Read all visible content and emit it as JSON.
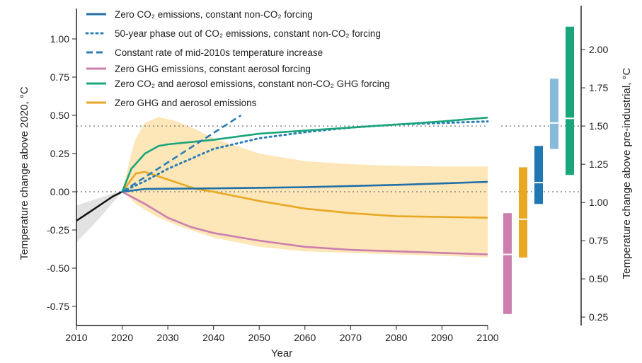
{
  "chart_data": {
    "type": "line",
    "xlabel": "Year",
    "ylabel": "Temperature change above 2020, °C",
    "ylabel_right": "Temperature change above pre-industrial, °C",
    "xlim": [
      2010,
      2100
    ],
    "ylim": [
      -0.85,
      1.15
    ],
    "ylim_right": [
      0.22,
      2.22
    ],
    "right_offset": 1.07,
    "xticks": [
      "2010",
      "2020",
      "2030",
      "2040",
      "2050",
      "2060",
      "2070",
      "2080",
      "2090",
      "2100"
    ],
    "yticks": [
      "-0.75",
      "-0.50",
      "-0.25",
      "0.00",
      "0.25",
      "0.50",
      "0.75",
      "1.00"
    ],
    "yticks_right": [
      "0.25",
      "0.50",
      "0.75",
      "1.00",
      "1.25",
      "1.50",
      "1.75",
      "2.00"
    ],
    "reference_lines": [
      0.0,
      0.43
    ],
    "historical": {
      "x": [
        2010,
        2013,
        2016,
        2018,
        2020
      ],
      "y": [
        -0.19,
        -0.13,
        -0.07,
        -0.03,
        0
      ],
      "band_upper": [
        -0.09,
        -0.06,
        -0.03,
        -0.01,
        0
      ],
      "band_lower": [
        -0.33,
        -0.24,
        -0.14,
        -0.07,
        0
      ]
    },
    "uncertainty_band": {
      "x": [
        2020,
        2022,
        2023,
        2025,
        2028,
        2032,
        2036,
        2040,
        2050,
        2060,
        2070,
        2080,
        2090,
        2100
      ],
      "upper": [
        0,
        0.25,
        0.35,
        0.45,
        0.49,
        0.46,
        0.41,
        0.35,
        0.25,
        0.2,
        0.18,
        0.17,
        0.165,
        0.165
      ],
      "lower": [
        0,
        -0.05,
        -0.08,
        -0.12,
        -0.17,
        -0.22,
        -0.26,
        -0.3,
        -0.36,
        -0.39,
        -0.4,
        -0.41,
        -0.42,
        -0.43
      ]
    },
    "series": [
      {
        "name": "Zero CO₂ emissions, constant non-CO₂ forcing",
        "color": "#1f6fa8",
        "style": "solid",
        "x": [
          2020,
          2025,
          2030,
          2040,
          2060,
          2080,
          2100
        ],
        "y": [
          0,
          0.018,
          0.02,
          0.022,
          0.03,
          0.045,
          0.065
        ]
      },
      {
        "name": "50-year phase out of CO₂ emissions, constant non-CO₂ forcing",
        "color": "#2a7fb5",
        "style": "dotted",
        "x": [
          2020,
          2025,
          2030,
          2040,
          2050,
          2060,
          2070,
          2080,
          2090,
          2100
        ],
        "y": [
          0,
          0.07,
          0.15,
          0.28,
          0.35,
          0.39,
          0.42,
          0.44,
          0.45,
          0.46
        ]
      },
      {
        "name": "Constant rate of mid-2010s temperature increase",
        "color": "#2a7fb5",
        "style": "dashed",
        "x": [
          2020,
          2046
        ],
        "y": [
          0,
          0.5
        ]
      },
      {
        "name": "Zero GHG emissions, constant aerosol forcing",
        "color": "#cc7fae",
        "style": "solid",
        "x": [
          2020,
          2025,
          2030,
          2035,
          2040,
          2050,
          2060,
          2070,
          2080,
          2090,
          2100
        ],
        "y": [
          0,
          -0.08,
          -0.17,
          -0.23,
          -0.27,
          -0.32,
          -0.36,
          -0.38,
          -0.39,
          -0.4,
          -0.41
        ]
      },
      {
        "name": "Zero CO₂ and aerosol emissions, constant non-CO₂ GHG forcing",
        "color": "#1aa57a",
        "style": "solid",
        "x": [
          2020,
          2022,
          2025,
          2028,
          2030,
          2040,
          2050,
          2060,
          2070,
          2080,
          2090,
          2100
        ],
        "y": [
          0,
          0.15,
          0.25,
          0.3,
          0.31,
          0.34,
          0.38,
          0.4,
          0.42,
          0.44,
          0.46,
          0.485
        ]
      },
      {
        "name": "Zero GHG and aerosol emissions",
        "color": "#e8a822",
        "style": "solid",
        "x": [
          2020,
          2023,
          2025,
          2028,
          2032,
          2036,
          2040,
          2050,
          2060,
          2070,
          2080,
          2090,
          2100
        ],
        "y": [
          0,
          0.12,
          0.13,
          0.1,
          0.06,
          0.02,
          0,
          -0.06,
          -0.11,
          -0.14,
          -0.16,
          -0.165,
          -0.17
        ]
      }
    ],
    "range_bars": [
      {
        "name": "Zero GHG emissions, constant aerosol forcing",
        "color": "#cc7fae",
        "low": 0.27,
        "median": 0.66,
        "high": 0.93
      },
      {
        "name": "Zero GHG and aerosol emissions",
        "color": "#e8a822",
        "low": 0.64,
        "median": 0.89,
        "high": 1.23
      },
      {
        "name": "Zero CO₂ emissions, constant non-CO₂ forcing",
        "color": "#1f78b4",
        "low": 0.99,
        "median": 1.13,
        "high": 1.37
      },
      {
        "name": "50-year phase out of CO₂ emissions",
        "color": "#88bbdb",
        "low": 1.35,
        "median": 1.52,
        "high": 1.81
      },
      {
        "name": "Zero CO₂ and aerosol emissions",
        "color": "#1aa57a",
        "low": 1.18,
        "median": 1.55,
        "high": 2.15
      }
    ]
  }
}
